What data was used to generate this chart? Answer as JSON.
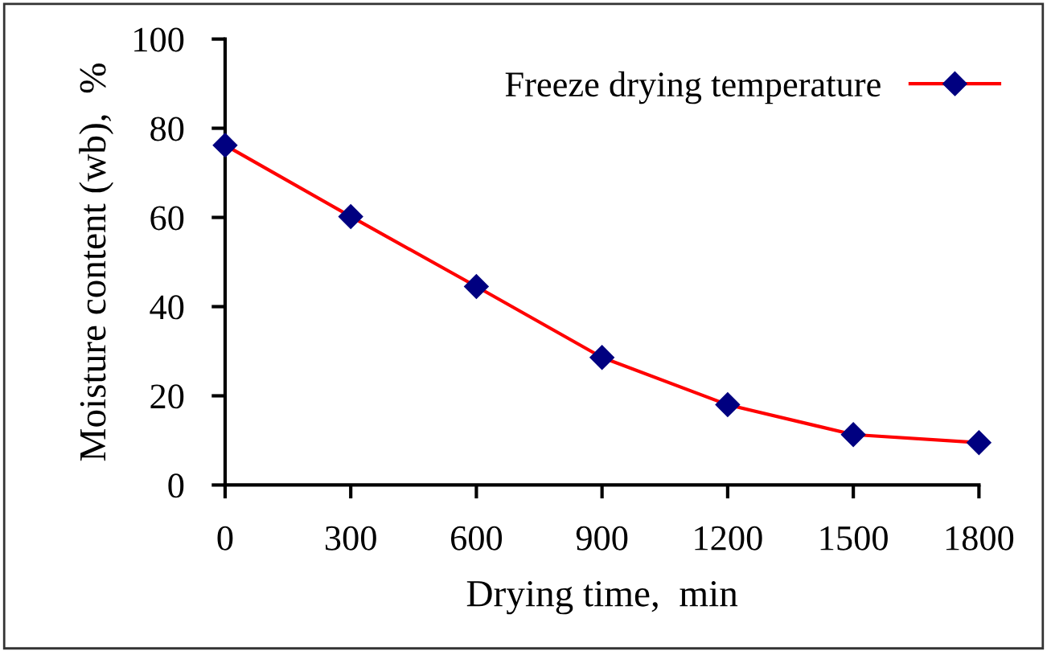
{
  "chart_data": {
    "type": "line",
    "xlabel": "Drying time,  min",
    "ylabel": "Moisture content (wb),  %",
    "x": [
      0,
      300,
      600,
      900,
      1200,
      1500,
      1800
    ],
    "series": [
      {
        "name": "Freeze drying temperature",
        "color": "#ff0000",
        "values": [
          76.2,
          60.2,
          44.5,
          28.6,
          18.0,
          11.3,
          9.5
        ]
      }
    ],
    "xlim": [
      0,
      1800
    ],
    "xticks": [
      0,
      300,
      600,
      900,
      1200,
      1500,
      1800
    ],
    "ylim": [
      0,
      100
    ],
    "yticks": [
      0,
      20,
      40,
      60,
      80,
      100
    ],
    "marker": "diamond",
    "line_style": "solid",
    "legend": "top right"
  }
}
